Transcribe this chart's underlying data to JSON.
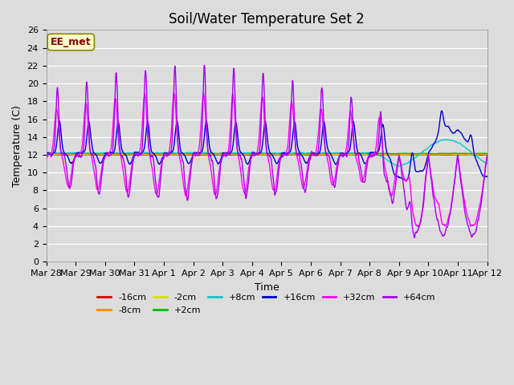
{
  "title": "Soil/Water Temperature Set 2",
  "xlabel": "Time",
  "ylabel": "Temperature (C)",
  "ylim": [
    0,
    26
  ],
  "yticks": [
    0,
    2,
    4,
    6,
    8,
    10,
    12,
    14,
    16,
    18,
    20,
    22,
    24,
    26
  ],
  "background_color": "#dcdcdc",
  "plot_bg_color": "#dcdcdc",
  "colors": {
    "-16cm": "#dd0000",
    "-8cm": "#ff8800",
    "-2cm": "#dddd00",
    "+2cm": "#00bb00",
    "+8cm": "#00cccc",
    "+16cm": "#0000cc",
    "+32cm": "#ff00ff",
    "+64cm": "#aa00ee"
  },
  "annotation": {
    "text": "EE_met",
    "fontsize": 9,
    "color": "#880000",
    "bg": "#ffffcc",
    "border": "#888800"
  },
  "legend_fontsize": 8,
  "title_fontsize": 12,
  "axis_label_fontsize": 9,
  "tick_fontsize": 8,
  "day_labels": [
    "Mar 28",
    "Mar 29",
    "Mar 30",
    "Mar 31",
    "Apr 1",
    "Apr 2",
    "Apr 3",
    "Apr 4",
    "Apr 5",
    "Apr 6",
    "Apr 7",
    "Apr 8",
    "Apr 9",
    "Apr 10",
    "Apr 11",
    "Apr 12"
  ]
}
